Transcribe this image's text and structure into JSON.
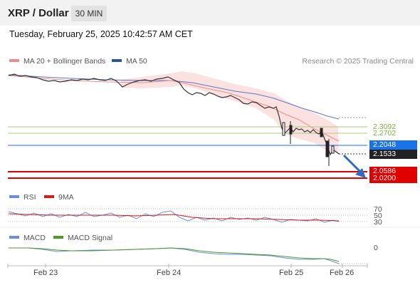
{
  "header": {
    "title": "XRP / Dollar",
    "timeframe": "30 MIN"
  },
  "datetime": "Tuesday, February 25, 2025 10:42:57 AM CET",
  "legend": {
    "ma20": "MA 20 + Bollinger Bands",
    "ma50": "MA 50",
    "ma20_color": "#f08c8c",
    "ma50_color": "#27579b"
  },
  "credit": "Research © 2025 Trading Central",
  "levels": {
    "r2": "2.3092",
    "r1": "2.2702",
    "pivot": "2.2048",
    "current": "2.1533",
    "s1": "2.0586",
    "s2": "2.0200",
    "resistance_color": "#7cb342",
    "pivot_color": "#1a73e8",
    "support_color": "#e00000"
  },
  "rsi": {
    "label": "RSI",
    "ma_label": "9MA",
    "levels": [
      "70",
      "50",
      "30"
    ],
    "rsi_color": "#6a8fd8",
    "ma_color": "#d81b1b"
  },
  "macd": {
    "label": "MACD",
    "signal_label": "MACD Signal",
    "zero": "0",
    "macd_color": "#6a8fd8",
    "signal_color": "#4c9a2a"
  },
  "xaxis": [
    "Feb 23",
    "Feb 24",
    "Feb 25",
    "Feb 26"
  ]
}
